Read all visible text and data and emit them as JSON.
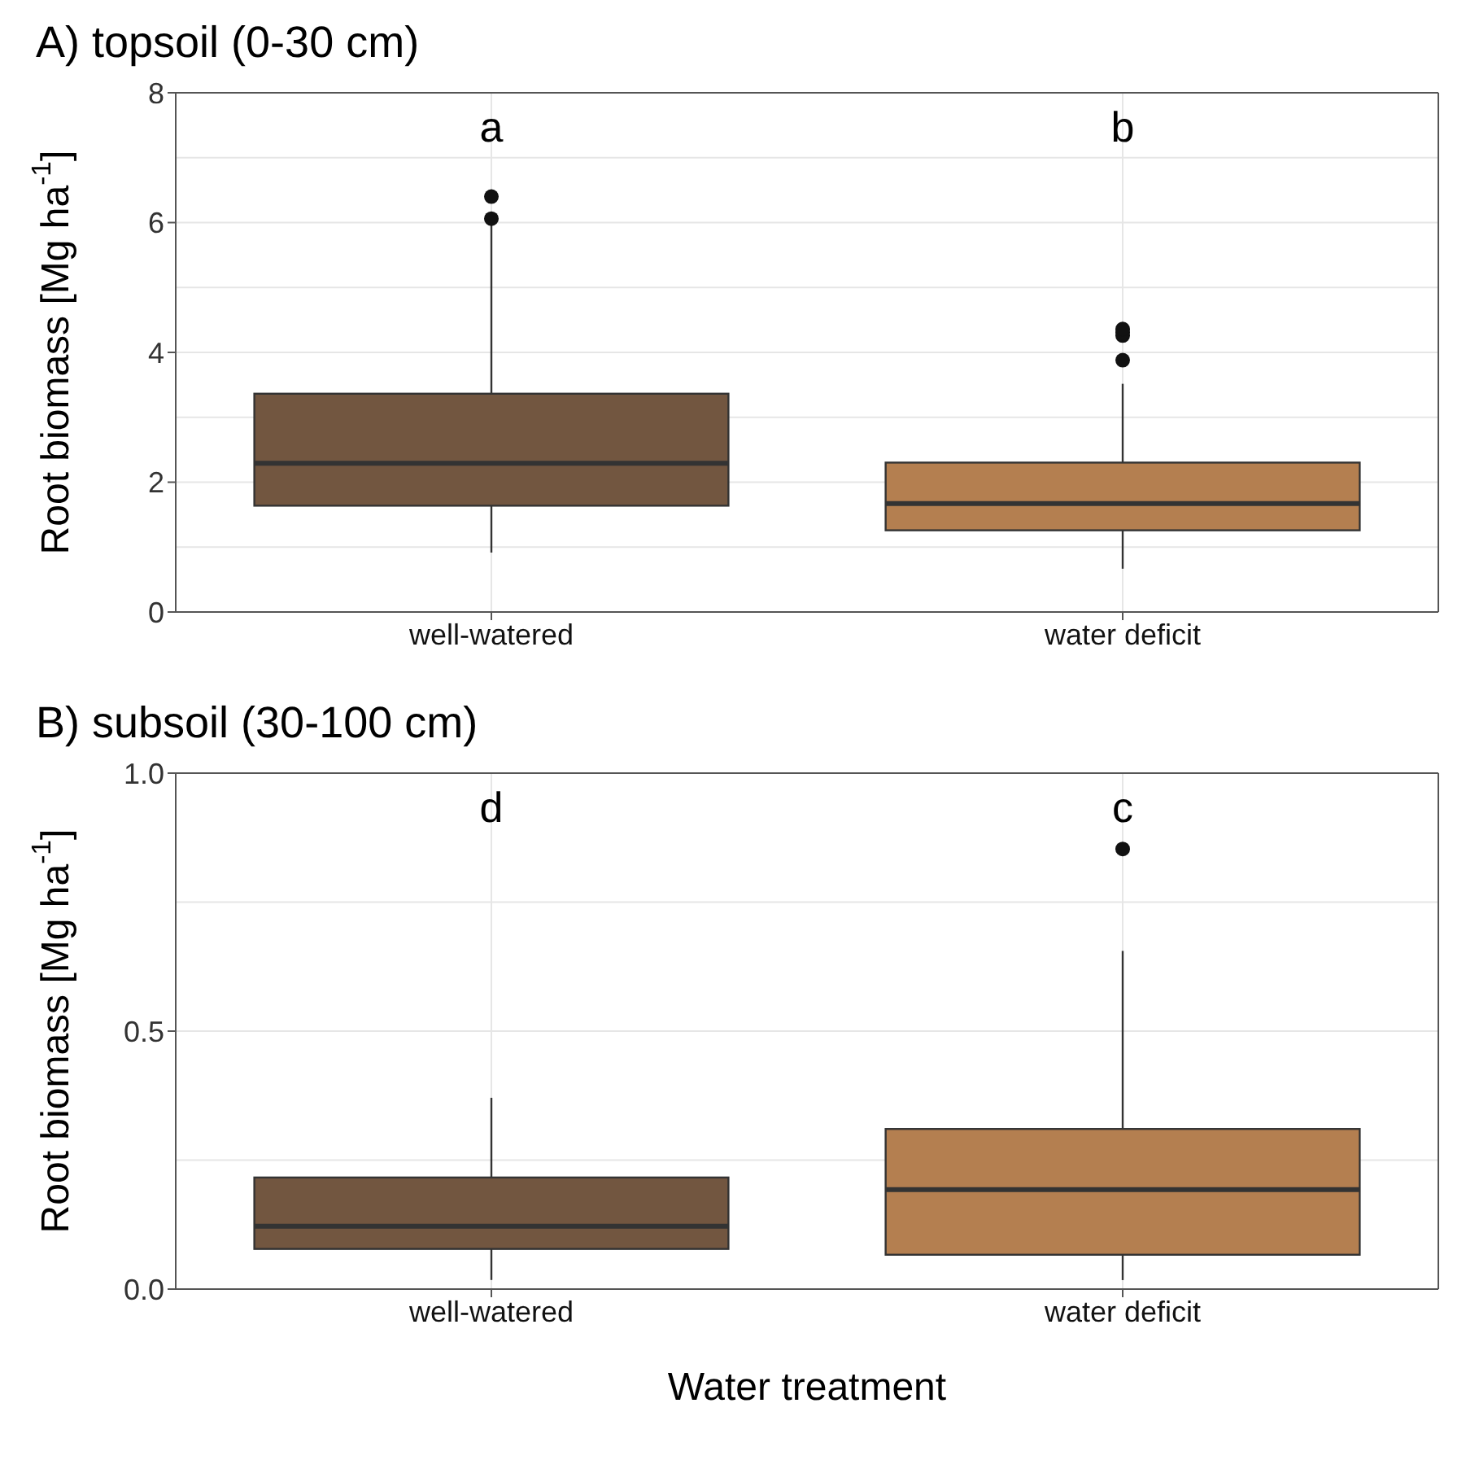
{
  "chart_data": [
    {
      "type": "box",
      "title": "A) topsoil (0-30 cm)",
      "ylabel": "Root biomass [Mg ha$^{-1}$]",
      "categories": [
        "well-watered",
        "water deficit"
      ],
      "colors": [
        "#725640",
        "#b47f50"
      ],
      "boxes": [
        {
          "low": 0.92,
          "q1": 1.64,
          "median": 2.29,
          "q3": 3.36,
          "high": 5.98,
          "outliers": [
            6.06,
            6.4
          ]
        },
        {
          "low": 0.67,
          "q1": 1.26,
          "median": 1.67,
          "q3": 2.3,
          "high": 3.51,
          "outliers": [
            3.88,
            4.26,
            4.31,
            4.36
          ]
        }
      ],
      "ylim": [
        0,
        8
      ],
      "yticks": [
        0,
        2,
        4,
        6,
        8
      ],
      "grid": true,
      "annotations": [
        "a",
        "b"
      ]
    },
    {
      "type": "box",
      "title": "B) subsoil (30-100 cm)",
      "xlabel": "Water treatment",
      "ylabel": "Root biomass [Mg ha$^{-1}$]",
      "categories": [
        "well-watered",
        "water deficit"
      ],
      "colors": [
        "#725640",
        "#b47f50"
      ],
      "boxes": [
        {
          "low": 0.018,
          "q1": 0.078,
          "median": 0.122,
          "q3": 0.216,
          "high": 0.37
        },
        {
          "low": 0.018,
          "q1": 0.067,
          "median": 0.193,
          "q3": 0.31,
          "high": 0.654,
          "outliers": [
            0.853
          ]
        }
      ],
      "ylim": [
        0,
        1
      ],
      "yticks": [
        {
          "value": 0,
          "label": "0.0"
        },
        {
          "value": 0.5,
          "label": "0.5"
        },
        {
          "value": 1,
          "label": "1.0"
        }
      ],
      "grid": true,
      "annotations": [
        "d",
        "c"
      ]
    }
  ]
}
